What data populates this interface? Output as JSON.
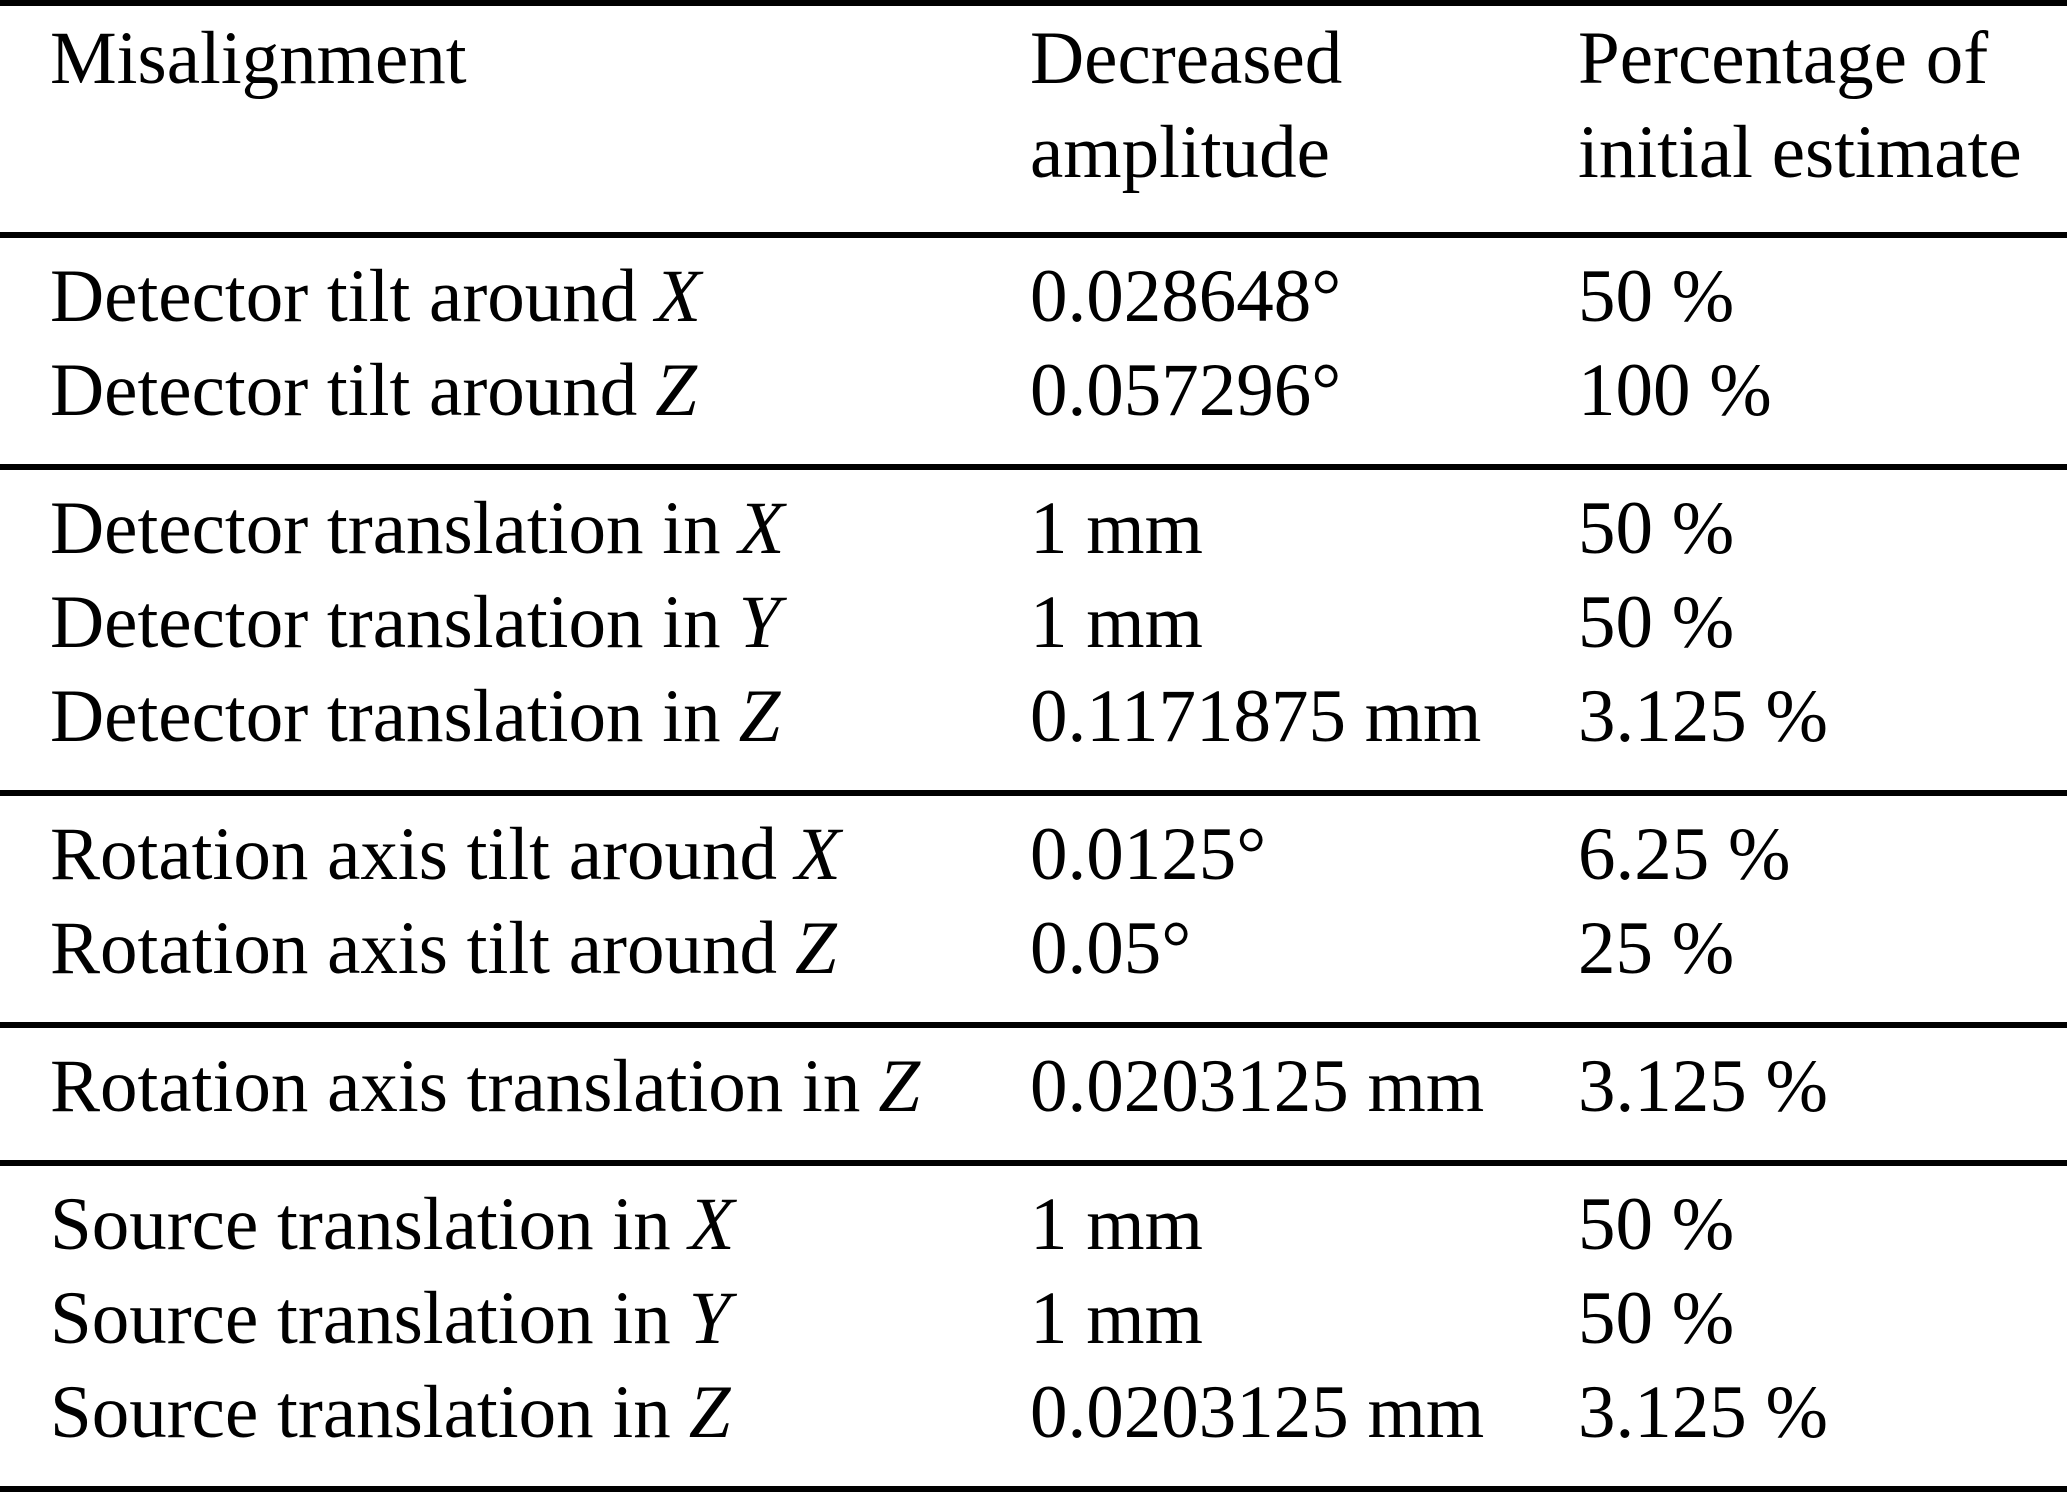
{
  "colors": {
    "background": "#ffffff",
    "text": "#000000",
    "rule": "#000000"
  },
  "table": {
    "headers": [
      {
        "line1": "Misalignment",
        "line2": ""
      },
      {
        "line1": "Decreased",
        "line2": "amplitude"
      },
      {
        "line1": "Percentage of",
        "line2": "initial estimate"
      }
    ],
    "sections": [
      {
        "rows": [
          {
            "label": "Detector tilt around",
            "var": "X",
            "amplitude": "0.028648°",
            "percentage": "50 %"
          },
          {
            "label": "Detector tilt around",
            "var": "Z",
            "amplitude": "0.057296°",
            "percentage": "100 %"
          }
        ]
      },
      {
        "rows": [
          {
            "label": "Detector translation in",
            "var": "X",
            "amplitude": "1 mm",
            "percentage": "50 %"
          },
          {
            "label": "Detector translation in",
            "var": "Y",
            "amplitude": "1 mm",
            "percentage": "50 %"
          },
          {
            "label": "Detector translation in",
            "var": "Z",
            "amplitude": "0.1171875 mm",
            "percentage": "3.125 %"
          }
        ]
      },
      {
        "rows": [
          {
            "label": "Rotation axis tilt around",
            "var": "X",
            "amplitude": "0.0125°",
            "percentage": "6.25 %"
          },
          {
            "label": "Rotation axis tilt around",
            "var": "Z",
            "amplitude": "0.05°",
            "percentage": "25 %"
          }
        ]
      },
      {
        "rows": [
          {
            "label": "Rotation axis translation in",
            "var": "Z",
            "amplitude": "0.0203125 mm",
            "percentage": "3.125 %"
          }
        ]
      },
      {
        "rows": [
          {
            "label": "Source translation in",
            "var": "X",
            "amplitude": "1 mm",
            "percentage": "50 %"
          },
          {
            "label": "Source translation in",
            "var": "Y",
            "amplitude": "1 mm",
            "percentage": "50 %"
          },
          {
            "label": "Source translation in",
            "var": "Z",
            "amplitude": "0.0203125 mm",
            "percentage": "3.125 %"
          }
        ]
      }
    ]
  },
  "chart_data": {
    "type": "table",
    "columns": [
      "Misalignment",
      "Decreased amplitude",
      "Percentage of initial estimate"
    ],
    "rows": [
      [
        "Detector tilt around X",
        "0.028648°",
        "50 %"
      ],
      [
        "Detector tilt around Z",
        "0.057296°",
        "100 %"
      ],
      [
        "Detector translation in X",
        "1 mm",
        "50 %"
      ],
      [
        "Detector translation in Y",
        "1 mm",
        "50 %"
      ],
      [
        "Detector translation in Z",
        "0.1171875 mm",
        "3.125 %"
      ],
      [
        "Rotation axis tilt around X",
        "0.0125°",
        "6.25 %"
      ],
      [
        "Rotation axis tilt around Z",
        "0.05°",
        "25 %"
      ],
      [
        "Rotation axis translation in Z",
        "0.0203125 mm",
        "3.125 %"
      ],
      [
        "Source translation in X",
        "1 mm",
        "50 %"
      ],
      [
        "Source translation in Y",
        "1 mm",
        "50 %"
      ],
      [
        "Source translation in Z",
        "0.0203125 mm",
        "3.125 %"
      ]
    ]
  }
}
